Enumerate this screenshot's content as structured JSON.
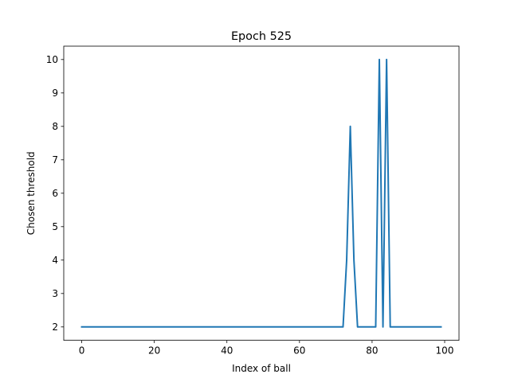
{
  "chart_data": {
    "type": "line",
    "title": "Epoch 525",
    "xlabel": "Index of ball",
    "ylabel": "Chosen threshold",
    "xlim": [
      -4.95,
      103.95
    ],
    "ylim": [
      1.6,
      10.4
    ],
    "x_ticks": [
      0,
      20,
      40,
      60,
      80,
      100
    ],
    "y_ticks": [
      2,
      3,
      4,
      5,
      6,
      7,
      8,
      9,
      10
    ],
    "grid": false,
    "series": [
      {
        "color": "#1f77b4",
        "x": [
          0,
          72,
          73,
          74,
          75,
          76,
          81,
          82,
          83,
          84,
          85,
          99
        ],
        "y": [
          2,
          2,
          4,
          8,
          4,
          2,
          2,
          10,
          2,
          10,
          2,
          2
        ]
      }
    ]
  }
}
